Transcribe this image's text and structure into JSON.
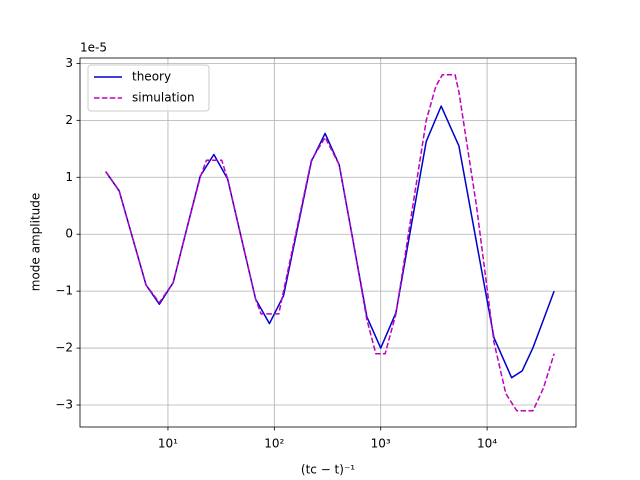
{
  "chart_data": {
    "type": "line",
    "xlabel": "(tc − t)⁻¹",
    "ylabel": "mode amplitude",
    "offset_label": "1e-5",
    "log_x": true,
    "grid": true,
    "legend": "upper left",
    "xlim": [
      1.49,
      68500
    ],
    "ylim": [
      -3.386,
      3.095
    ],
    "xticks": [
      {
        "value": 10,
        "label": "10¹"
      },
      {
        "value": 100,
        "label": "10²"
      },
      {
        "value": 1000,
        "label": "10³"
      },
      {
        "value": 10000,
        "label": "10⁴"
      }
    ],
    "yticks": [
      {
        "value": -3,
        "label": "−3"
      },
      {
        "value": -2,
        "label": "−2"
      },
      {
        "value": -1,
        "label": "−1"
      },
      0,
      1,
      2,
      3
    ],
    "series": [
      {
        "name": "theory",
        "color": "#0000cc",
        "dash": false,
        "x": [
          2.6,
          3.48,
          4.66,
          6.22,
          8.3,
          11.2,
          15.0,
          20.1,
          27,
          36.4,
          49.3,
          66.7,
          90,
          122,
          165,
          223,
          300,
          407,
          550,
          741,
          1000,
          1390,
          1928,
          2679,
          3700,
          5433,
          7943,
          11614,
          17000,
          21380,
          26900,
          33900,
          42660
        ],
        "values": [
          1.1,
          0.76,
          -0.07,
          -0.89,
          -1.23,
          -0.85,
          0.09,
          1.02,
          1.4,
          0.97,
          -0.09,
          -1.14,
          -1.57,
          -1.08,
          0.1,
          1.28,
          1.77,
          1.22,
          -0.12,
          -1.45,
          -2.0,
          -1.38,
          0.13,
          1.63,
          2.25,
          1.55,
          -0.14,
          -1.82,
          -2.52,
          -2.4,
          -2.0,
          -1.5,
          -1.0
        ]
      },
      {
        "name": "simulation",
        "color": "#bf00bf",
        "dash": true,
        "x": [
          2.6,
          3.48,
          4.66,
          6.22,
          8.3,
          11.2,
          15.0,
          20.1,
          23,
          27,
          32,
          36.4,
          49.3,
          66.7,
          75,
          90,
          110,
          122,
          165,
          223,
          300,
          407,
          550,
          741,
          900,
          1000,
          1100,
          1390,
          1928,
          2679,
          3300,
          3800,
          5000,
          5433,
          7943,
          11614,
          15000,
          19000,
          27000,
          33900,
          42660
        ],
        "values": [
          1.1,
          0.76,
          -0.07,
          -0.89,
          -1.2,
          -0.85,
          0.09,
          1.0,
          1.3,
          1.3,
          1.3,
          0.97,
          -0.09,
          -1.14,
          -1.4,
          -1.4,
          -1.4,
          -1.0,
          0.15,
          1.3,
          1.7,
          1.22,
          -0.12,
          -1.5,
          -2.1,
          -2.1,
          -2.1,
          -1.4,
          0.3,
          2.0,
          2.6,
          2.8,
          2.8,
          2.5,
          0.5,
          -1.9,
          -2.8,
          -3.1,
          -3.1,
          -2.7,
          -2.1
        ]
      }
    ]
  }
}
